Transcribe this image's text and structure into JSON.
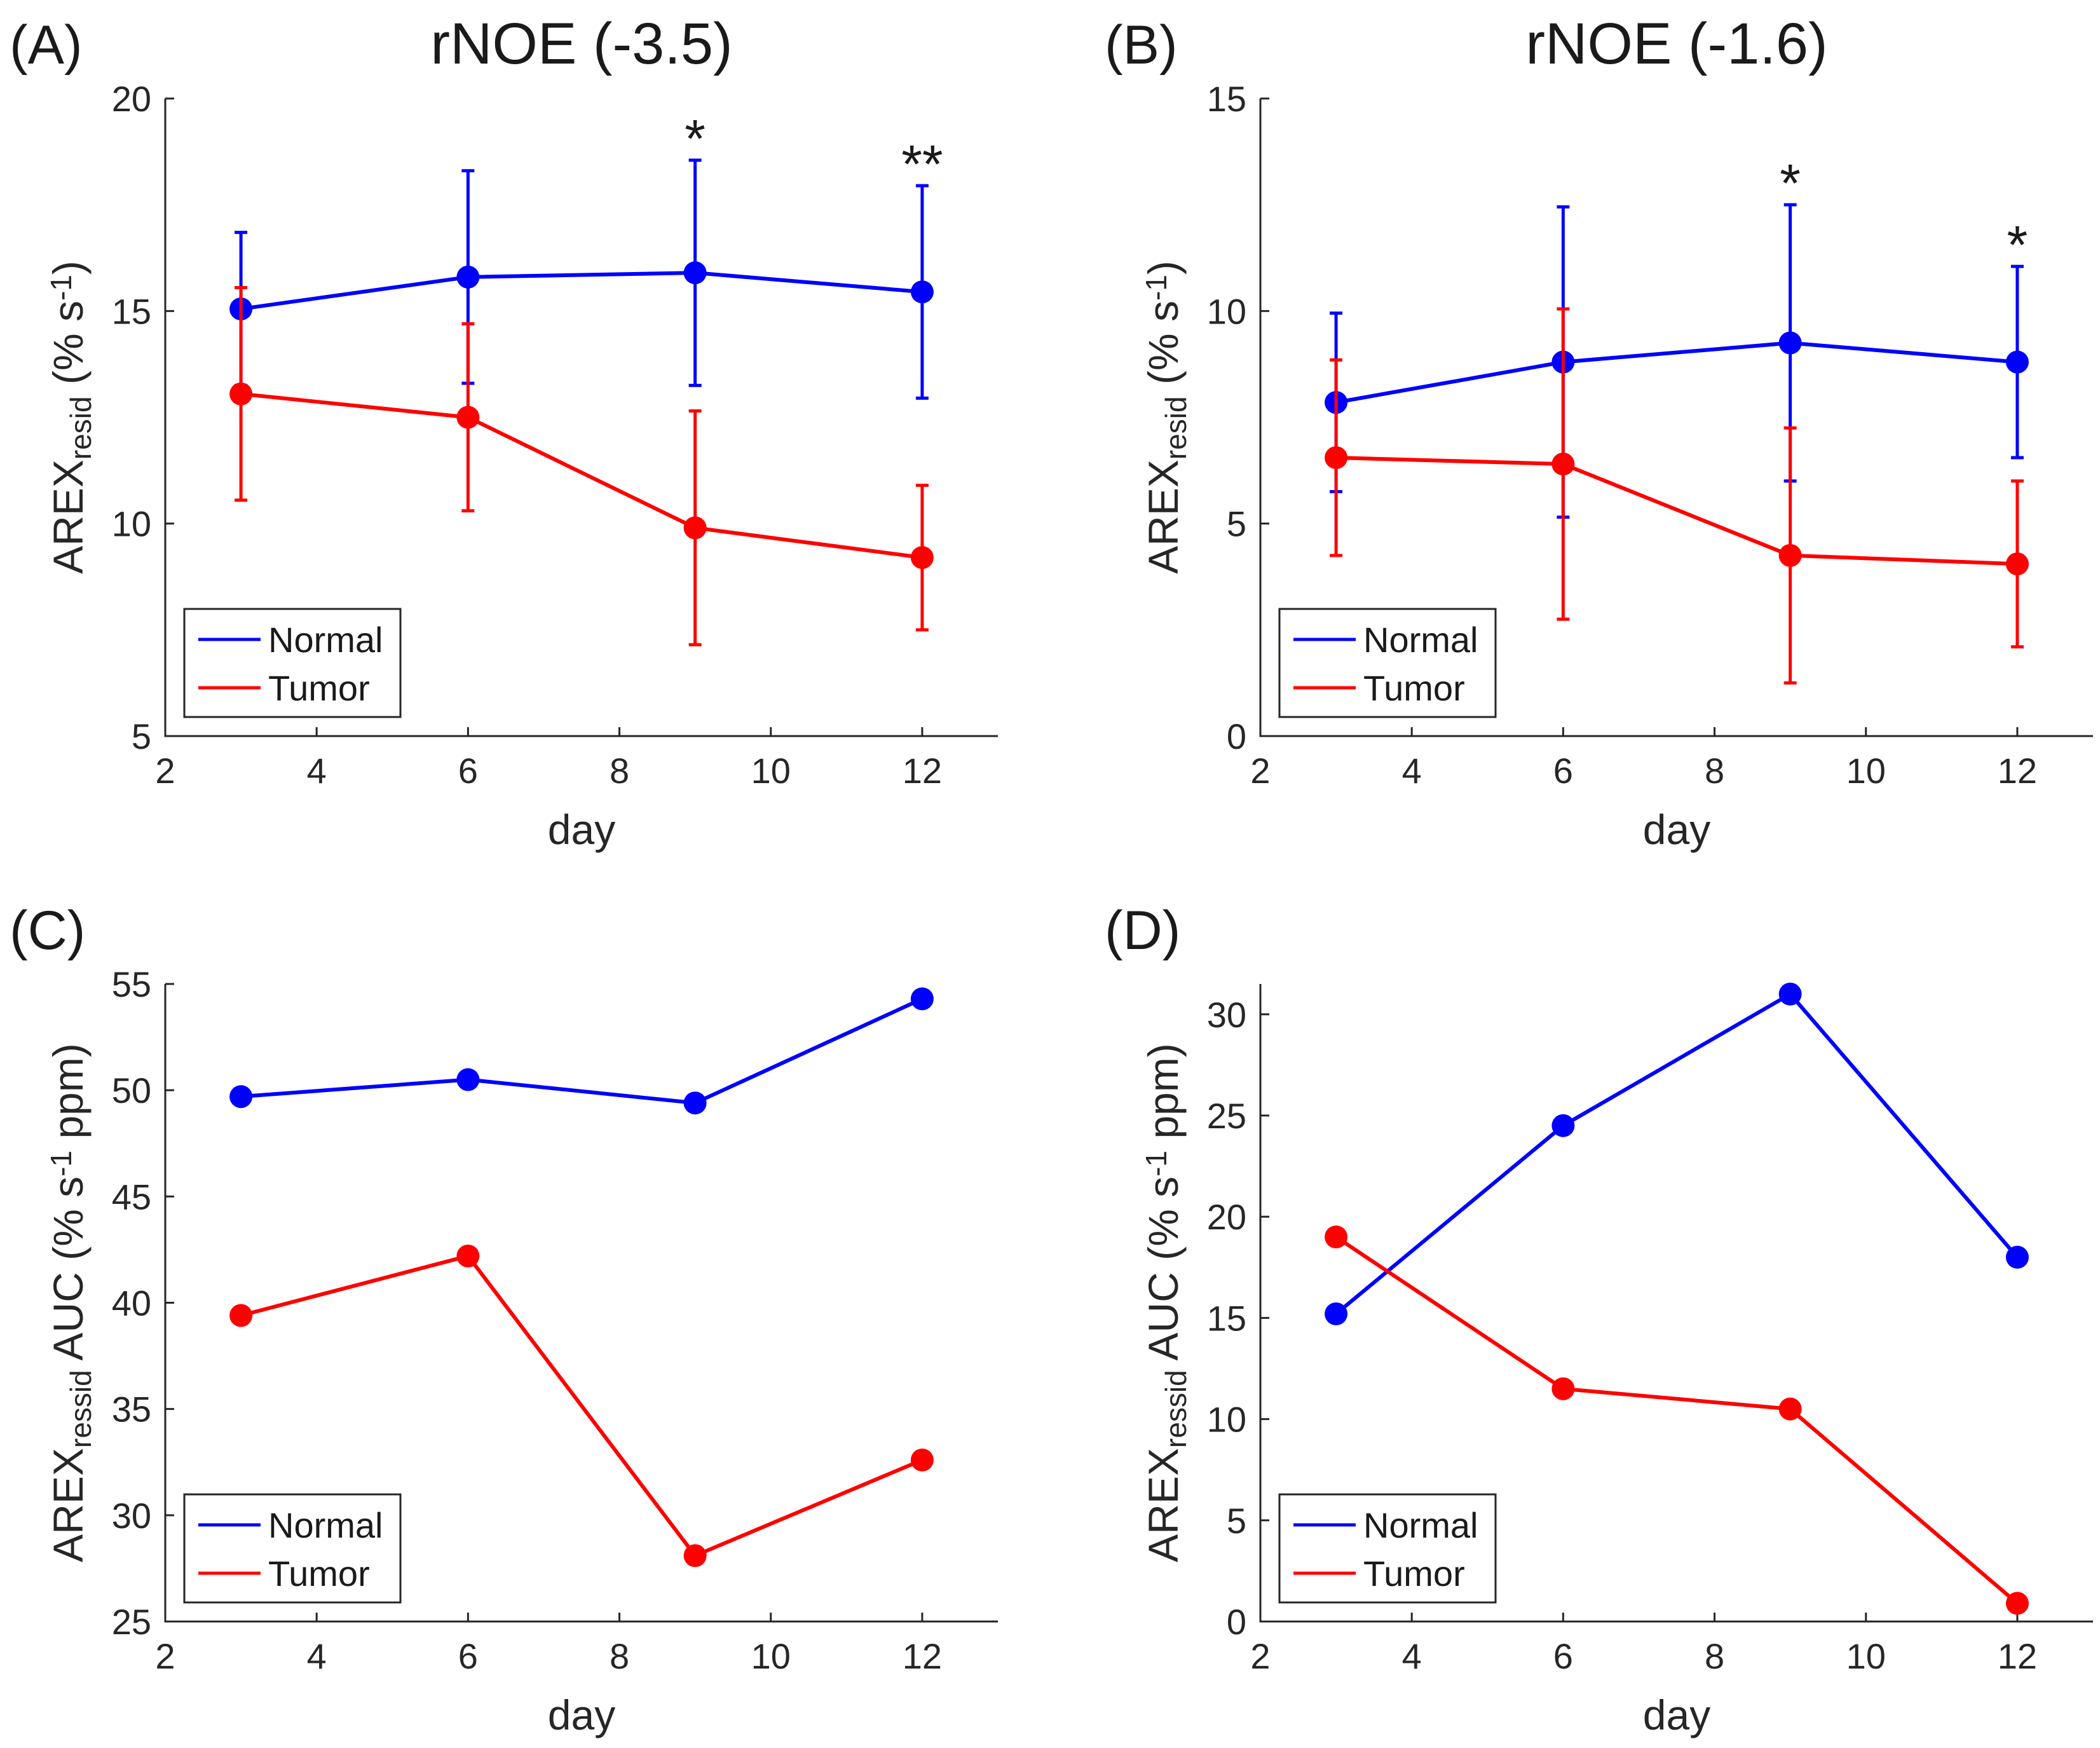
{
  "figure": {
    "colors": {
      "normal": "#0000ff",
      "tumor": "#ff0000",
      "axis": "#262626"
    }
  },
  "chart_data": [
    {
      "type": "line",
      "panel_label": "(A)",
      "title": "rNOE (-3.5)",
      "xlabel": "day",
      "ylabel_main": "AREX",
      "ylabel_sub": "resid",
      "ylabel_unit_pre": " (% s",
      "ylabel_unit_sup": "-1",
      "ylabel_unit_post": ")",
      "xlim": [
        2,
        13
      ],
      "ylim": [
        5,
        20
      ],
      "xticks": [
        2,
        4,
        6,
        8,
        10,
        12
      ],
      "yticks": [
        5,
        10,
        15,
        20
      ],
      "legend": {
        "position": "bottom-left",
        "entries": [
          "Normal",
          "Tumor"
        ]
      },
      "x": [
        3,
        6,
        9,
        12
      ],
      "series": [
        {
          "name": "Normal",
          "color": "#0000ff",
          "values": [
            15.05,
            15.8,
            15.9,
            15.45
          ],
          "err": [
            1.8,
            2.5,
            2.65,
            2.5
          ]
        },
        {
          "name": "Tumor",
          "color": "#ff0000",
          "values": [
            13.05,
            12.5,
            9.9,
            9.2
          ],
          "err": [
            2.5,
            2.2,
            2.75,
            1.7
          ]
        }
      ],
      "annotations": [
        {
          "x": 9,
          "text": "*"
        },
        {
          "x": 12,
          "text": "**"
        }
      ]
    },
    {
      "type": "line",
      "panel_label": "(B)",
      "title": "rNOE (-1.6)",
      "xlabel": "day",
      "ylabel_main": "AREX",
      "ylabel_sub": "resid",
      "ylabel_unit_pre": " (% s",
      "ylabel_unit_sup": "-1",
      "ylabel_unit_post": ")",
      "xlim": [
        2,
        13
      ],
      "ylim": [
        0,
        15
      ],
      "xticks": [
        2,
        4,
        6,
        8,
        10,
        12
      ],
      "yticks": [
        0,
        5,
        10,
        15
      ],
      "legend": {
        "position": "bottom-left",
        "entries": [
          "Normal",
          "Tumor"
        ]
      },
      "x": [
        3,
        6,
        9,
        12
      ],
      "series": [
        {
          "name": "Normal",
          "color": "#0000ff",
          "values": [
            7.85,
            8.8,
            9.25,
            8.8
          ],
          "err": [
            2.1,
            3.65,
            3.25,
            2.25
          ]
        },
        {
          "name": "Tumor",
          "color": "#ff0000",
          "values": [
            6.55,
            6.4,
            4.25,
            4.05
          ],
          "err": [
            2.3,
            3.65,
            3.0,
            1.95
          ]
        }
      ],
      "annotations": [
        {
          "x": 9,
          "text": "*"
        },
        {
          "x": 12,
          "text": "*"
        }
      ]
    },
    {
      "type": "line",
      "panel_label": "(C)",
      "title": "",
      "xlabel": "day",
      "ylabel_main": "AREX",
      "ylabel_sub": "ressid",
      "ylabel_unit_pre": " AUC (% s",
      "ylabel_unit_sup": "-1",
      "ylabel_unit_post": " ppm)",
      "xlim": [
        2,
        13
      ],
      "ylim": [
        25,
        55
      ],
      "xticks": [
        2,
        4,
        6,
        8,
        10,
        12
      ],
      "yticks": [
        25,
        30,
        35,
        40,
        45,
        50,
        55
      ],
      "legend": {
        "position": "bottom-left",
        "entries": [
          "Normal",
          "Tumor"
        ]
      },
      "x": [
        3,
        6,
        9,
        12
      ],
      "series": [
        {
          "name": "Normal",
          "color": "#0000ff",
          "values": [
            49.7,
            50.5,
            49.4,
            54.3
          ]
        },
        {
          "name": "Tumor",
          "color": "#ff0000",
          "values": [
            39.4,
            42.2,
            28.1,
            32.6
          ]
        }
      ],
      "annotations": []
    },
    {
      "type": "line",
      "panel_label": "(D)",
      "title": "",
      "xlabel": "day",
      "ylabel_main": "AREX",
      "ylabel_sub": "ressid",
      "ylabel_unit_pre": " AUC (% s",
      "ylabel_unit_sup": "-1",
      "ylabel_unit_post": " ppm)",
      "xlim": [
        2,
        13
      ],
      "ylim": [
        0,
        31.5
      ],
      "xticks": [
        2,
        4,
        6,
        8,
        10,
        12
      ],
      "yticks": [
        0,
        5,
        10,
        15,
        20,
        25,
        30
      ],
      "legend": {
        "position": "bottom-left",
        "entries": [
          "Normal",
          "Tumor"
        ]
      },
      "x": [
        3,
        6,
        9,
        12
      ],
      "series": [
        {
          "name": "Normal",
          "color": "#0000ff",
          "values": [
            15.2,
            24.5,
            31.0,
            18.0
          ]
        },
        {
          "name": "Tumor",
          "color": "#ff0000",
          "values": [
            19.0,
            11.5,
            10.5,
            0.9
          ]
        }
      ],
      "annotations": []
    }
  ]
}
